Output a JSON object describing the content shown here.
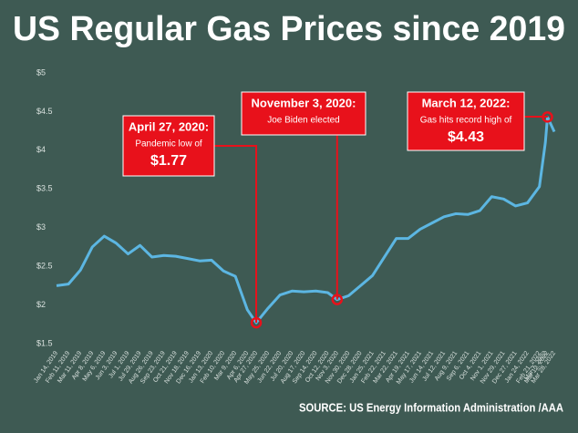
{
  "chart_data": {
    "type": "line",
    "title": "US Regular Gas Prices since 2019",
    "source": "SOURCE: US Energy Information Administration /AAA",
    "x": [
      "Jan 14, 2019",
      "Feb 11, 2019",
      "Mar 11, 2019",
      "Apr 8, 2019",
      "May 6, 2019",
      "Jun 3, 2019",
      "Jul 1, 2019",
      "Jul 29, 2019",
      "Aug 26, 2019",
      "Sep 23, 2019",
      "Oct 21, 2019",
      "Nov 18, 2019",
      "Dec 16, 2019",
      "Jan 13, 2020",
      "Feb 10, 2020",
      "Mar 9, 2020",
      "Apr 6, 2020",
      "Apr 27, 2020",
      "May 25, 2020",
      "Jun 22, 2020",
      "Jul 20, 2020",
      "Aug 17, 2020",
      "Sep 14, 2020",
      "Oct 12, 2020",
      "Nov 3, 2020",
      "Nov 30, 2020",
      "Dec 28, 2020",
      "Jan 25, 2021",
      "Feb 22, 2021",
      "Mar 22, 2021",
      "Apr 19, 2021",
      "May 17, 2021",
      "Jun 14, 2021",
      "Jul 12, 2021",
      "Aug 9, 2021",
      "Sep 6, 2021",
      "Oct 4, 2021",
      "Nov 1, 2021",
      "Nov 29, 2021",
      "Dec 27, 2021",
      "Jan 24, 2022",
      "Feb 21, 2022",
      "Mar 7, 2022",
      "Mar 12, 2022",
      "Mar 28, 2022"
    ],
    "series": [
      {
        "name": "Regular gas price",
        "color": "#5cb6e2",
        "values": [
          2.25,
          2.27,
          2.45,
          2.75,
          2.89,
          2.8,
          2.66,
          2.77,
          2.62,
          2.64,
          2.63,
          2.6,
          2.57,
          2.58,
          2.44,
          2.37,
          1.94,
          1.77,
          1.96,
          2.13,
          2.18,
          2.17,
          2.18,
          2.16,
          2.07,
          2.12,
          2.25,
          2.38,
          2.62,
          2.86,
          2.86,
          2.98,
          3.06,
          3.14,
          3.18,
          3.17,
          3.22,
          3.4,
          3.37,
          3.28,
          3.32,
          3.53,
          4.1,
          4.43,
          4.24
        ]
      }
    ],
    "ylim": [
      1.5,
      5
    ],
    "yticks": [
      {
        "value": 1.5,
        "label": "$1.5"
      },
      {
        "value": 2,
        "label": "$2"
      },
      {
        "value": 2.5,
        "label": "$2.5"
      },
      {
        "value": 3,
        "label": "$3"
      },
      {
        "value": 3.5,
        "label": "$3.5"
      },
      {
        "value": 4,
        "label": "$4"
      },
      {
        "value": 4.5,
        "label": "$4.5"
      },
      {
        "value": 5,
        "label": "$5"
      }
    ],
    "annotations": [
      {
        "title": "April 27, 2020:",
        "text": "Pandemic low of",
        "value_label": "$1.77"
      },
      {
        "title": "November 3, 2020:",
        "text": "Joe Biden elected"
      },
      {
        "title": "March 12, 2022:",
        "text": "Gas hits record high of",
        "value_label": "$4.43"
      }
    ]
  }
}
